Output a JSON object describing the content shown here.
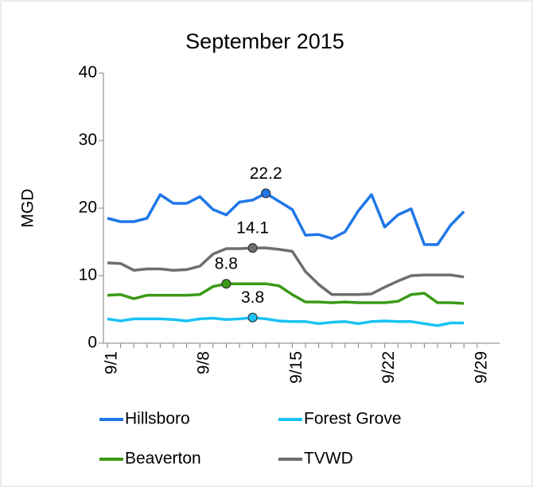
{
  "chart_data": {
    "type": "line",
    "title": "September 2015",
    "y_label": "MGD",
    "categories": [
      "9/1",
      null,
      null,
      null,
      null,
      null,
      null,
      "9/8",
      null,
      null,
      null,
      null,
      null,
      null,
      "9/15",
      null,
      null,
      null,
      null,
      null,
      null,
      "9/22",
      null,
      null,
      null,
      null,
      null,
      null,
      "9/29"
    ],
    "ylim": [
      0,
      40
    ],
    "yticks": [
      0,
      10,
      20,
      30,
      40
    ],
    "grid": false,
    "series": [
      {
        "name": "Hillsboro",
        "color": "#1f77e8",
        "values": [
          18.5,
          18,
          18,
          18.5,
          22,
          20.7,
          20.7,
          21.7,
          19.8,
          19,
          20.9,
          21.2,
          22.2,
          21,
          19.8,
          16,
          16.1,
          15.5,
          16.5,
          19.6,
          22,
          17.2,
          19,
          19.9,
          14.6,
          14.6,
          17.5,
          19.5,
          null
        ],
        "value_labels": [
          null,
          null,
          null,
          null,
          null,
          null,
          null,
          null,
          null,
          null,
          null,
          null,
          "22.2",
          null,
          null,
          null,
          null,
          null,
          null,
          null,
          null,
          null,
          null,
          null,
          null,
          null,
          null,
          null,
          null
        ]
      },
      {
        "name": "Forest Grove",
        "color": "#19c3f5",
        "values": [
          3.6,
          3.3,
          3.6,
          3.6,
          3.6,
          3.5,
          3.3,
          3.6,
          3.7,
          3.5,
          3.6,
          3.8,
          3.6,
          3.3,
          3.2,
          3.2,
          2.9,
          3.1,
          3.2,
          2.9,
          3.2,
          3.3,
          3.2,
          3.2,
          2.9,
          2.6,
          3,
          3,
          null
        ],
        "value_labels": [
          null,
          null,
          null,
          null,
          null,
          null,
          null,
          null,
          null,
          null,
          null,
          "3.8",
          null,
          null,
          null,
          null,
          null,
          null,
          null,
          null,
          null,
          null,
          null,
          null,
          null,
          null,
          null,
          null,
          null
        ]
      },
      {
        "name": "Beaverton",
        "color": "#3a9a16",
        "values": [
          7.1,
          7.2,
          6.6,
          7.1,
          7.1,
          7.1,
          7.1,
          7.2,
          8.4,
          8.8,
          8.8,
          8.8,
          8.8,
          8.5,
          7.2,
          6.1,
          6.1,
          6,
          6.1,
          6,
          6,
          6,
          6.2,
          7.2,
          7.4,
          6,
          6,
          5.9,
          null
        ],
        "value_labels": [
          null,
          null,
          null,
          null,
          null,
          null,
          null,
          null,
          null,
          "8.8",
          null,
          null,
          null,
          null,
          null,
          null,
          null,
          null,
          null,
          null,
          null,
          null,
          null,
          null,
          null,
          null,
          null,
          null,
          null
        ]
      },
      {
        "name": "TVWD",
        "color": "#6e6e6e",
        "values": [
          11.9,
          11.8,
          10.8,
          11,
          11,
          10.8,
          10.9,
          11.4,
          13.2,
          14,
          14,
          14.1,
          14.1,
          13.9,
          13.6,
          10.6,
          8.7,
          7.2,
          7.2,
          7.2,
          7.3,
          8.3,
          9.2,
          10,
          10.1,
          10.1,
          10.1,
          9.8,
          null
        ],
        "value_labels": [
          null,
          null,
          null,
          null,
          null,
          null,
          null,
          null,
          null,
          null,
          null,
          "14.1",
          null,
          null,
          null,
          null,
          null,
          null,
          null,
          null,
          null,
          null,
          null,
          null,
          null,
          null,
          null,
          null,
          null
        ]
      }
    ]
  }
}
